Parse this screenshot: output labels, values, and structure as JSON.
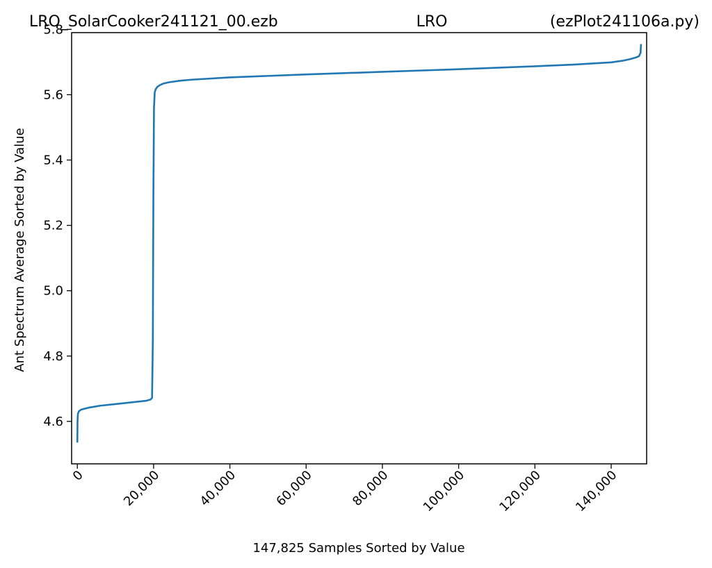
{
  "chart_data": {
    "type": "line",
    "title_parts": [
      "LRO_SolarCooker241121_00.ezb",
      "LRO",
      "(ezPlot241106a.py)"
    ],
    "xlabel": "147,825 Samples Sorted by Value",
    "ylabel": "Ant Spectrum Average Sorted by Value",
    "xlim": [
      -1500,
      149300
    ],
    "ylim": [
      4.47,
      5.79
    ],
    "xticks": [
      0,
      20000,
      40000,
      60000,
      80000,
      100000,
      120000,
      140000
    ],
    "xtick_labels": [
      "0",
      "20,000",
      "40,000",
      "60,000",
      "80,000",
      "100,000",
      "120,000",
      "140,000"
    ],
    "yticks": [
      4.6,
      4.8,
      5.0,
      5.2,
      5.4,
      5.6,
      5.8
    ],
    "ytick_labels": [
      "4.6",
      "4.8",
      "5.0",
      "5.2",
      "5.4",
      "5.6",
      "5.8"
    ],
    "grid": false,
    "series": [
      {
        "color": "#1f77b4",
        "x": [
          0,
          50,
          150,
          400,
          1000,
          3000,
          6000,
          10000,
          14000,
          18000,
          19200,
          19600,
          19800,
          19950,
          20100,
          20300,
          20600,
          21000,
          21600,
          22500,
          24000,
          27000,
          30000,
          40000,
          60000,
          80000,
          100000,
          120000,
          130000,
          140000,
          143000,
          145000,
          146500,
          147300,
          147700,
          147825
        ],
        "y": [
          4.535,
          4.6,
          4.623,
          4.631,
          4.636,
          4.642,
          4.648,
          4.653,
          4.658,
          4.663,
          4.667,
          4.672,
          4.85,
          5.3,
          5.56,
          5.608,
          5.618,
          5.624,
          5.629,
          5.634,
          5.638,
          5.643,
          5.646,
          5.653,
          5.662,
          5.67,
          5.678,
          5.687,
          5.692,
          5.699,
          5.704,
          5.709,
          5.714,
          5.718,
          5.728,
          5.755
        ]
      }
    ]
  }
}
